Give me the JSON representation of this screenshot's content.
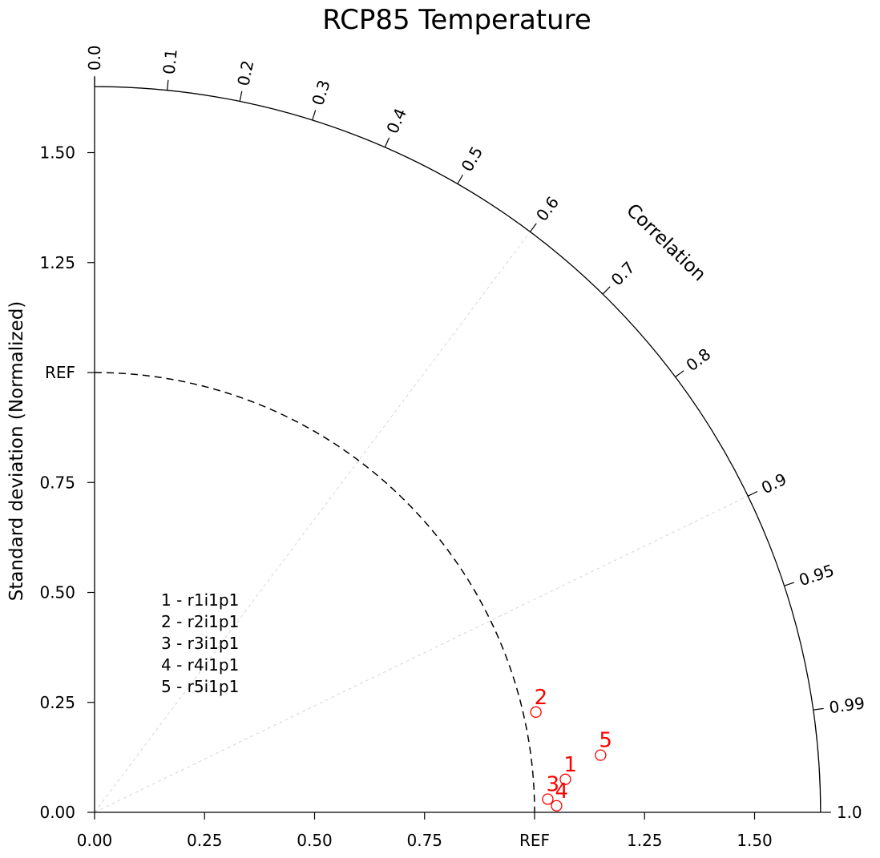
{
  "chart_data": {
    "type": "taylor-diagram",
    "title": "RCP85 Temperature",
    "ylabel": "Standard deviation (Normalized)",
    "correlation_label": "Correlation",
    "ref_label": "REF",
    "ref_std": 1.0,
    "std_max": 1.65,
    "std_ticks": [
      0.0,
      0.25,
      0.5,
      0.75,
      1.0,
      1.25,
      1.5
    ],
    "std_tick_labels": [
      "0.00",
      "0.25",
      "0.50",
      "0.75",
      "REF",
      "1.25",
      "1.50"
    ],
    "corr_ticks": [
      0.0,
      0.1,
      0.2,
      0.3,
      0.4,
      0.5,
      0.6,
      0.7,
      0.8,
      0.9,
      0.95,
      0.99,
      1.0
    ],
    "corr_tick_labels": [
      "0.0",
      "0.1",
      "0.2",
      "0.3",
      "0.4",
      "0.5",
      "0.6",
      "0.7",
      "0.8",
      "0.9",
      "0.95",
      "0.99",
      "1.0"
    ],
    "corr_gridlines": [
      0.6,
      0.9
    ],
    "marker_color": "#ff0000",
    "points": [
      {
        "label": "1",
        "x": 1.07,
        "y": 0.075
      },
      {
        "label": "2",
        "x": 1.003,
        "y": 0.228
      },
      {
        "label": "3",
        "x": 1.03,
        "y": 0.03
      },
      {
        "label": "4",
        "x": 1.05,
        "y": 0.015
      },
      {
        "label": "5",
        "x": 1.15,
        "y": 0.13
      }
    ],
    "legend": [
      "1 - r1i1p1",
      "2 - r2i1p1",
      "3 - r3i1p1",
      "4 - r4i1p1",
      "5 - r5i1p1"
    ]
  }
}
